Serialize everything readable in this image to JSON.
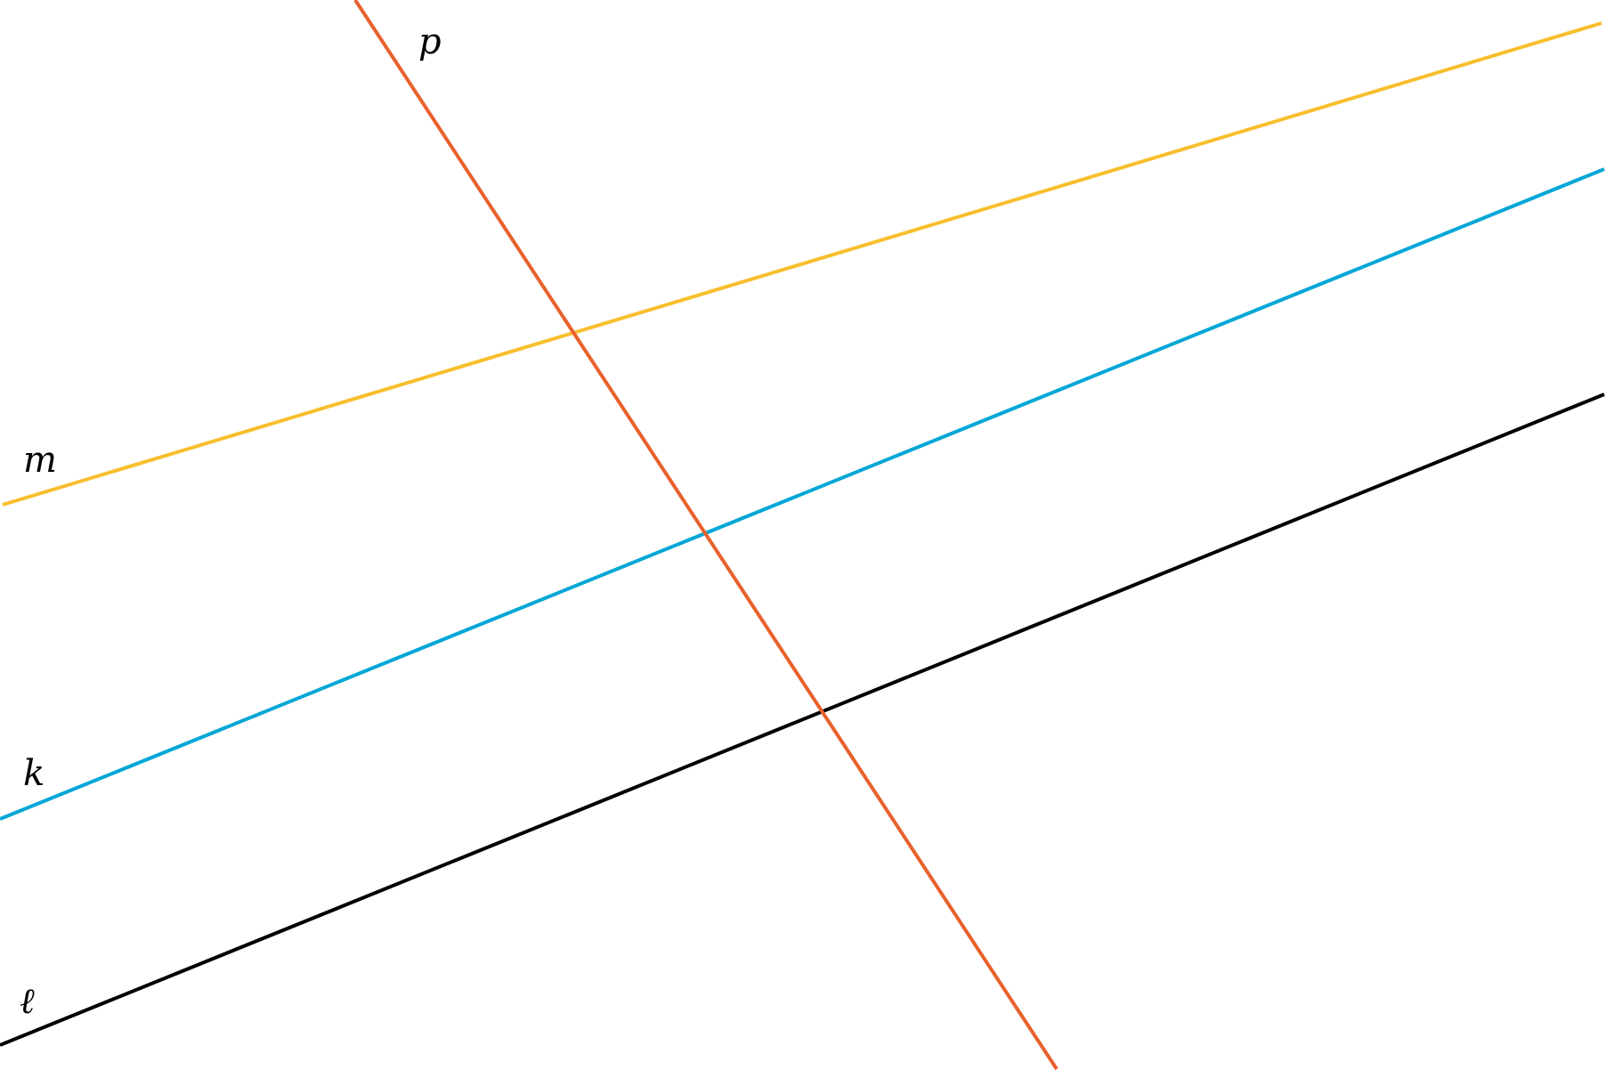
{
  "lines": [
    {
      "label": "m",
      "color": "#F9BE2D"
    },
    {
      "label": "k",
      "color": "#00A6D6"
    },
    {
      "label": "ℓ",
      "color": "#000000"
    },
    {
      "label": "p",
      "color": "#E8612C"
    }
  ]
}
